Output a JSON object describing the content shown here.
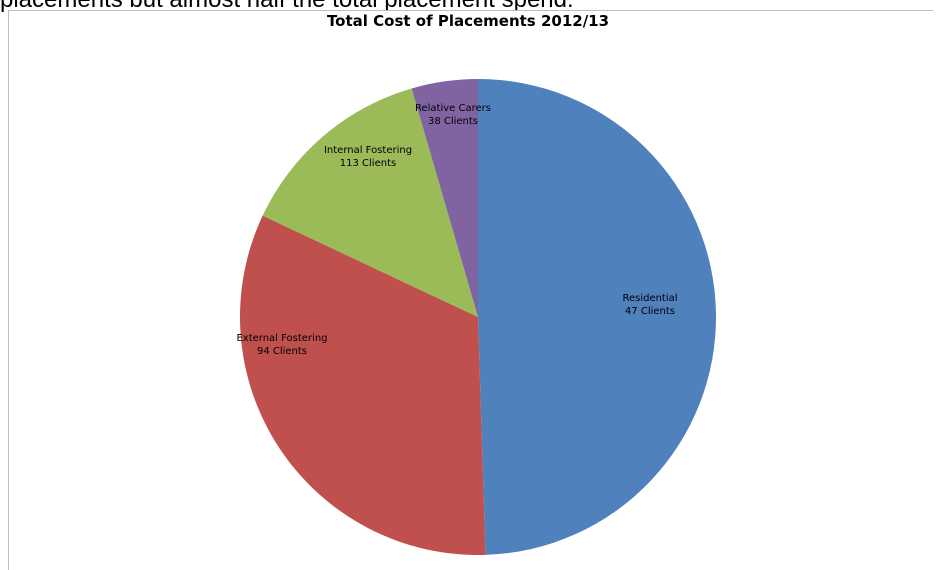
{
  "page": {
    "top_text": "placements but almost half the total placement spend."
  },
  "chart_data": {
    "type": "pie",
    "title": "Total Cost of Placements 2012/13",
    "slices": [
      {
        "name": "Residential",
        "clients": "47 Clients",
        "share": 0.495,
        "color": "#4F81BD"
      },
      {
        "name": "External Fostering",
        "clients": "94 Clients",
        "share": 0.325,
        "color": "#C0504D"
      },
      {
        "name": "Internal Fostering",
        "clients": "113 Clients",
        "share": 0.135,
        "color": "#9BBB59"
      },
      {
        "name": "Relative Carers",
        "clients": "38 Clients",
        "share": 0.045,
        "color": "#8064A2"
      }
    ],
    "legend": "none",
    "start_angle": "12 o'clock, clockwise"
  }
}
